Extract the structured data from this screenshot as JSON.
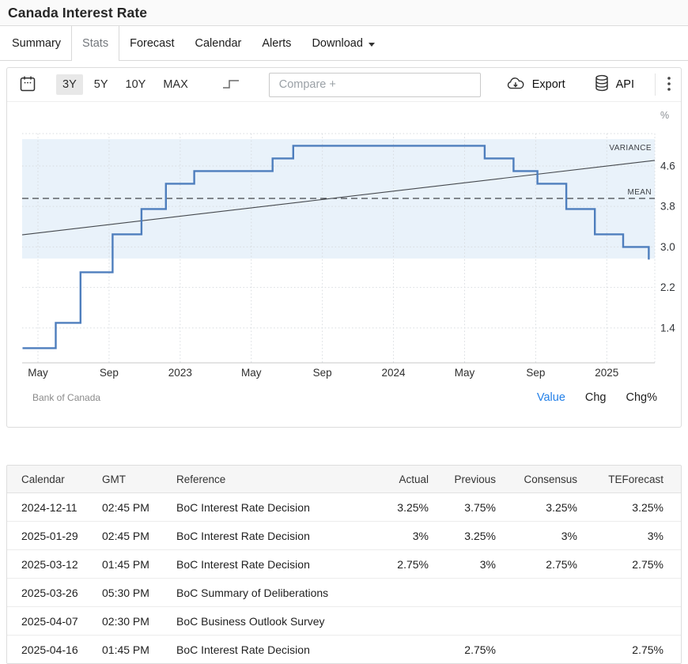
{
  "header": {
    "title": "Canada Interest Rate"
  },
  "tabs": [
    {
      "label": "Summary"
    },
    {
      "label": "Stats",
      "active": true
    },
    {
      "label": "Forecast"
    },
    {
      "label": "Calendar"
    },
    {
      "label": "Alerts"
    },
    {
      "label": "Download",
      "has_caret": true
    }
  ],
  "toolbar": {
    "ranges": [
      "3Y",
      "5Y",
      "10Y",
      "MAX"
    ],
    "active_range": "3Y",
    "compare_placeholder": "Compare +",
    "export_label": "Export",
    "api_label": "API"
  },
  "chart_data": {
    "type": "line",
    "line_style": "step",
    "title": "Canada Interest Rate",
    "unit": "%",
    "source": "Bank of Canada",
    "legend_position": "none",
    "grid": true,
    "series": [
      {
        "name": "Canada Interest Rate",
        "points": [
          [
            "2022-04-05",
            1.0
          ],
          [
            "2022-06-01",
            1.5
          ],
          [
            "2022-07-13",
            2.5
          ],
          [
            "2022-09-07",
            3.25
          ],
          [
            "2022-10-26",
            3.75
          ],
          [
            "2022-12-07",
            4.25
          ],
          [
            "2023-01-25",
            4.5
          ],
          [
            "2023-06-07",
            4.75
          ],
          [
            "2023-07-12",
            5.0
          ],
          [
            "2024-06-05",
            4.75
          ],
          [
            "2024-07-24",
            4.5
          ],
          [
            "2024-09-04",
            4.25
          ],
          [
            "2024-10-23",
            3.75
          ],
          [
            "2024-12-11",
            3.25
          ],
          [
            "2025-01-29",
            3.0
          ],
          [
            "2025-03-12",
            2.75
          ]
        ]
      }
    ],
    "overlays": {
      "mean": 3.96,
      "variance_band": [
        2.77,
        5.13
      ],
      "trend": {
        "start_value": 3.24,
        "end_value": 4.71
      }
    },
    "y_ticks": [
      1.4,
      2.2,
      3.0,
      3.8,
      4.6
    ],
    "ylim": [
      0.71,
      5.24
    ],
    "x_ticks": [
      {
        "m": 0,
        "label": "May"
      },
      {
        "m": 4,
        "label": "Sep"
      },
      {
        "m": 8,
        "label": "2023"
      },
      {
        "m": 12,
        "label": "May"
      },
      {
        "m": 16,
        "label": "Sep"
      },
      {
        "m": 20,
        "label": "2024"
      },
      {
        "m": 24,
        "label": "May"
      },
      {
        "m": 28,
        "label": "Sep"
      },
      {
        "m": 32,
        "label": "2025"
      }
    ],
    "xlim_months": [
      -0.89,
      34.7
    ],
    "labels": {
      "variance": "VARIANCE",
      "mean": "MEAN",
      "unit_axis": "%"
    }
  },
  "chart_footer": {
    "source": "Bank of Canada",
    "modes": [
      "Value",
      "Chg",
      "Chg%"
    ],
    "active_mode": "Value"
  },
  "table": {
    "columns": [
      "Calendar",
      "GMT",
      "Reference",
      "Actual",
      "Previous",
      "Consensus",
      "TEForecast"
    ],
    "rows": [
      [
        "2024-12-11",
        "02:45 PM",
        "BoC Interest Rate Decision",
        "3.25%",
        "3.75%",
        "3.25%",
        "3.25%"
      ],
      [
        "2025-01-29",
        "02:45 PM",
        "BoC Interest Rate Decision",
        "3%",
        "3.25%",
        "3%",
        "3%"
      ],
      [
        "2025-03-12",
        "01:45 PM",
        "BoC Interest Rate Decision",
        "2.75%",
        "3%",
        "2.75%",
        "2.75%"
      ],
      [
        "2025-03-26",
        "05:30 PM",
        "BoC Summary of Deliberations",
        "",
        "",
        "",
        ""
      ],
      [
        "2025-04-07",
        "02:30 PM",
        "BoC Business Outlook Survey",
        "",
        "",
        "",
        ""
      ],
      [
        "2025-04-16",
        "01:45 PM",
        "BoC Interest Rate Decision",
        "",
        "2.75%",
        "",
        "2.75%"
      ]
    ]
  },
  "colors": {
    "series_line": "#4e7ebd",
    "variance_band": "#e9f2fa",
    "mode_active": "#2380e8",
    "mean_line": "#181b1e",
    "trend_line": "#45494e"
  }
}
